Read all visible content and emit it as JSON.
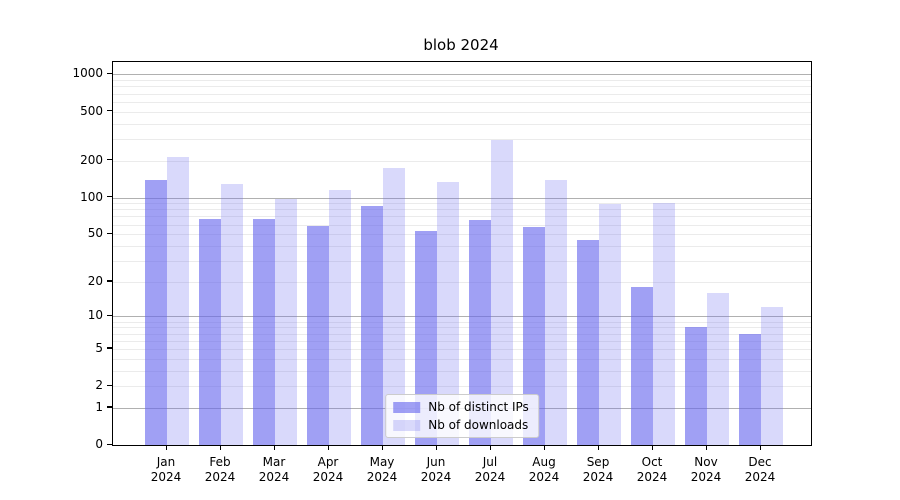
{
  "chart_data": {
    "type": "bar",
    "title": "blob 2024",
    "scale": "log1p (pixel position proportional to log10(value+1), symlog-like with 0 at baseline)",
    "categories": [
      "Jan 2024",
      "Feb 2024",
      "Mar 2024",
      "Apr 2024",
      "May 2024",
      "Jun 2024",
      "Jul 2024",
      "Aug 2024",
      "Sep 2024",
      "Oct 2024",
      "Nov 2024",
      "Dec 2024"
    ],
    "series": [
      {
        "name": "Nb of distinct IPs",
        "color": "rgba(102,102,238,0.62)",
        "values": [
          140,
          67,
          67,
          58,
          85,
          53,
          66,
          57,
          45,
          18,
          8,
          7
        ]
      },
      {
        "name": "Nb of downloads",
        "color": "rgba(102,102,238,0.25)",
        "values": [
          215,
          130,
          97,
          115,
          175,
          133,
          295,
          138,
          89,
          91,
          16,
          12
        ]
      }
    ],
    "yticks": [
      0,
      1,
      2,
      5,
      10,
      20,
      50,
      100,
      200,
      500,
      1000
    ],
    "ylim": [
      0,
      1200
    ],
    "xlabel": "",
    "ylabel": "",
    "grid": "horizontal; dark gray major gridlines at 1, 10, 100, 1000; light minor gridlines at 2-9, 20-90, 200-900",
    "legend_position": "lower center inside plot"
  },
  "colors": {
    "bar_base": "#6666ee",
    "bar_dark_rendered": "#a0a0f0",
    "bar_light_rendered": "#d9d9f8",
    "grid_major": "#b0b0b0",
    "grid_minor": "#ebebeb",
    "spine": "#000000",
    "background": "#ffffff",
    "legend_border": "#cccccc"
  }
}
